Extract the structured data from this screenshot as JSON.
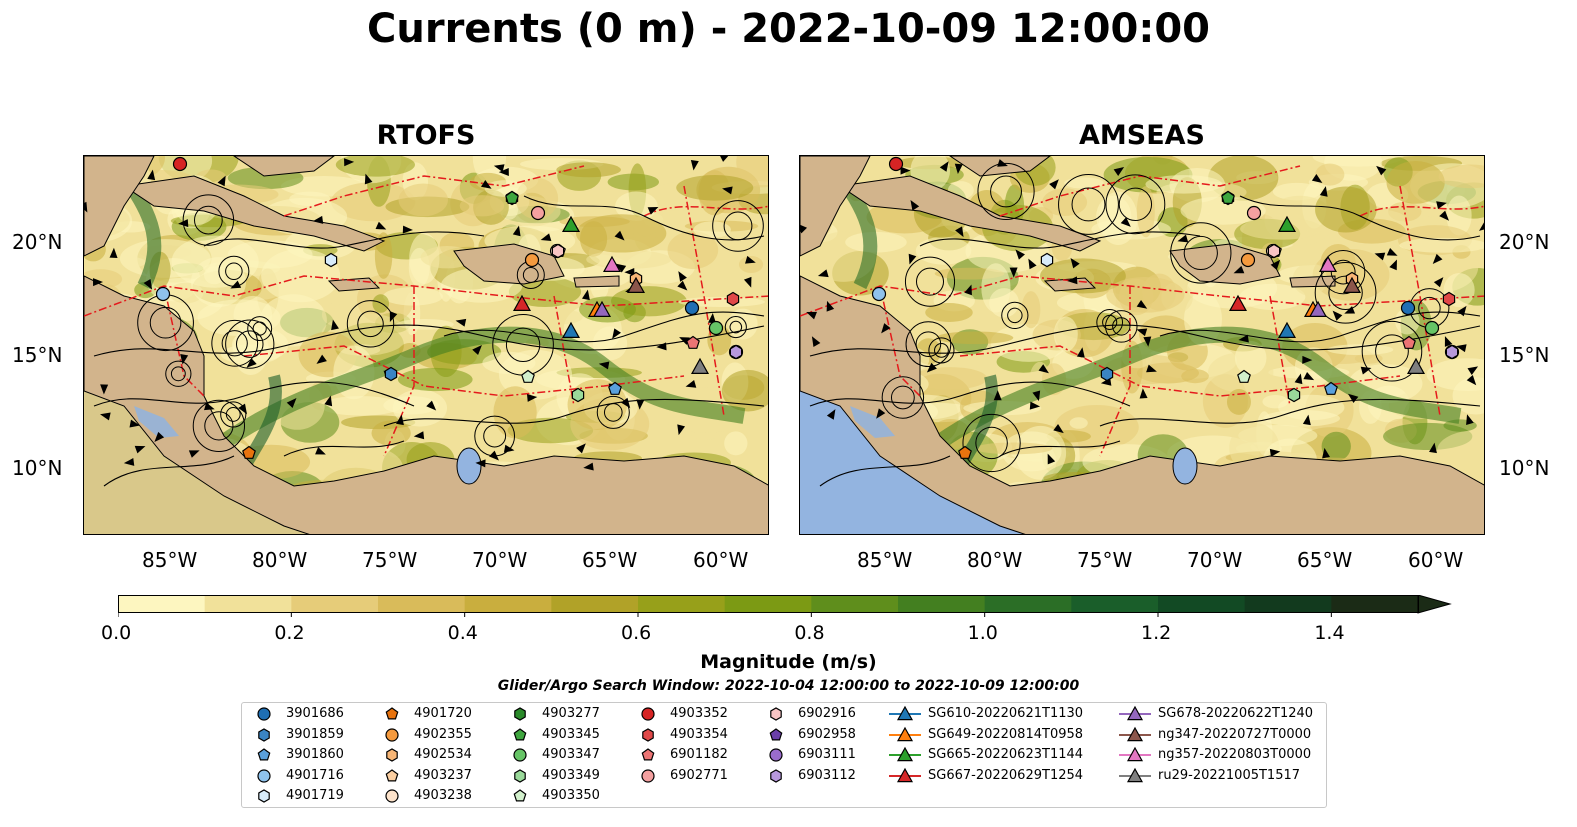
{
  "title": "Currents (0 m) - 2022-10-09 12:00:00",
  "panels": [
    {
      "title": "RTOFS",
      "land_color": "#d2b48c",
      "ocean_color": "#d9c88a",
      "pacific_color": "#d9c88a"
    },
    {
      "title": "AMSEAS",
      "land_color": "#d2b48c",
      "ocean_color": "#d9c88a",
      "pacific_color": "#93b4e0"
    }
  ],
  "lat_labels": [
    "20°N",
    "15°N",
    "10°N"
  ],
  "lon_labels": [
    "85°W",
    "80°W",
    "75°W",
    "70°W",
    "65°W",
    "60°W"
  ],
  "colorbar": {
    "label": "Magnitude (m/s)",
    "ticks": [
      "0.0",
      "0.2",
      "0.4",
      "0.6",
      "0.8",
      "1.0",
      "1.2",
      "1.4"
    ],
    "min": 0.0,
    "max": 1.5,
    "colors": [
      "#fdf6c0",
      "#f1e19a",
      "#e6cc79",
      "#d9bb5a",
      "#c9ae3e",
      "#b1a228",
      "#97a01a",
      "#7c9a14",
      "#5f8e1c",
      "#437f20",
      "#2b6e26",
      "#1a5e2a",
      "#124a24",
      "#123a1e",
      "#1b2b16"
    ]
  },
  "search_window": "Glider/Argo Search Window: 2022-10-04 12:00:00 to 2022-10-09 12:00:00",
  "legend": [
    {
      "label": "3901686",
      "marker": "circle",
      "color": "#1f6fb4"
    },
    {
      "label": "3901859",
      "marker": "hexagon",
      "color": "#3a84c4"
    },
    {
      "label": "3901860",
      "marker": "pentagon",
      "color": "#5aa0dc"
    },
    {
      "label": "4901716",
      "marker": "circle",
      "color": "#8fc2ec"
    },
    {
      "label": "4901719",
      "marker": "hexagon",
      "color": "#d8ecfa"
    },
    {
      "label": "4901720",
      "marker": "pentagon",
      "color": "#e8730e"
    },
    {
      "label": "4902355",
      "marker": "circle",
      "color": "#f59a3e"
    },
    {
      "label": "4902534",
      "marker": "hexagon",
      "color": "#f8b676"
    },
    {
      "label": "4903237",
      "marker": "pentagon",
      "color": "#fbcfa2"
    },
    {
      "label": "4903238",
      "marker": "circle",
      "color": "#fde3cb"
    },
    {
      "label": "4903277",
      "marker": "hexagon",
      "color": "#2a8a2a"
    },
    {
      "label": "4903345",
      "marker": "pentagon",
      "color": "#3fa63f"
    },
    {
      "label": "4903347",
      "marker": "circle",
      "color": "#66c466"
    },
    {
      "label": "4903349",
      "marker": "hexagon",
      "color": "#9ad99a"
    },
    {
      "label": "4903350",
      "marker": "pentagon",
      "color": "#d2f0cc"
    },
    {
      "label": "4903352",
      "marker": "circle",
      "color": "#d62424"
    },
    {
      "label": "4903354",
      "marker": "hexagon",
      "color": "#e04848"
    },
    {
      "label": "6901182",
      "marker": "pentagon",
      "color": "#ec7474"
    },
    {
      "label": "6902771",
      "marker": "circle",
      "color": "#f4a0a0"
    },
    {
      "label": "6902916",
      "marker": "hexagon",
      "color": "#f8c4c4"
    },
    {
      "label": "6902958",
      "marker": "pentagon",
      "color": "#6a3fa8"
    },
    {
      "label": "6903111",
      "marker": "circle",
      "color": "#9a6ccc"
    },
    {
      "label": "6903112",
      "marker": "hexagon",
      "color": "#b798dc"
    },
    {
      "label": "SG610-20220621T1130",
      "marker": "triangle-line",
      "color": "#1f77b4"
    },
    {
      "label": "SG649-20220814T0958",
      "marker": "triangle-line",
      "color": "#ff7f0e"
    },
    {
      "label": "SG665-20220623T1144",
      "marker": "triangle-line",
      "color": "#2ca02c"
    },
    {
      "label": "SG667-20220629T1254",
      "marker": "triangle-line",
      "color": "#d62728"
    },
    {
      "label": "SG678-20220622T1240",
      "marker": "triangle-line",
      "color": "#9467bd"
    },
    {
      "label": "ng347-20220727T0000",
      "marker": "triangle-line",
      "color": "#8c564b"
    },
    {
      "label": "ng357-20220803T0000",
      "marker": "triangle-line",
      "color": "#e377c2"
    },
    {
      "label": "ru29-20221005T1517",
      "marker": "triangle-line",
      "color": "#7f7f7f"
    }
  ]
}
